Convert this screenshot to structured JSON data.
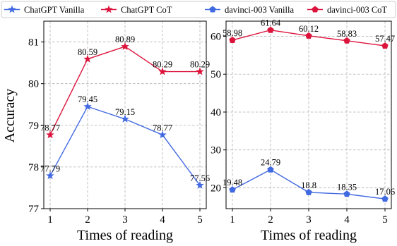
{
  "chart_data": [
    {
      "type": "line",
      "xlabel": "Times of reading",
      "ylabel": "Accuracy",
      "x": [
        1,
        2,
        3,
        4,
        5
      ],
      "ylim": [
        77,
        81.5
      ],
      "yticks": [
        77,
        78,
        79,
        80,
        81
      ],
      "grid": true,
      "series": [
        {
          "name": "ChatGPT Vanilla",
          "values": [
            77.79,
            79.45,
            79.15,
            78.77,
            77.56
          ],
          "labels": [
            "77.79",
            "79.45",
            "79.15",
            "78.77",
            "77.56"
          ],
          "color": "#4169e1",
          "marker": "star"
        },
        {
          "name": "ChatGPT CoT",
          "values": [
            78.77,
            80.59,
            80.89,
            80.29,
            80.29
          ],
          "labels": [
            "78.77",
            "80.59",
            "80.89",
            "80.29",
            "80.29"
          ],
          "color": "#dc143c",
          "marker": "star"
        }
      ]
    },
    {
      "type": "line",
      "xlabel": "Times of reading",
      "ylabel": "",
      "x": [
        1,
        2,
        3,
        4,
        5
      ],
      "ylim": [
        14.5,
        64
      ],
      "yticks": [
        20,
        30,
        40,
        50,
        60
      ],
      "grid": true,
      "series": [
        {
          "name": "davinci-003 Vanilla",
          "values": [
            19.48,
            24.79,
            18.8,
            18.35,
            17.06
          ],
          "labels": [
            "19.48",
            "24.79",
            "18.8",
            "18.35",
            "17.06"
          ],
          "color": "#4169e1",
          "marker": "pentagon"
        },
        {
          "name": "davinci-003 CoT",
          "values": [
            58.98,
            61.64,
            60.12,
            58.83,
            57.47
          ],
          "labels": [
            "58.98",
            "61.64",
            "60.12",
            "58.83",
            "57.47"
          ],
          "color": "#dc143c",
          "marker": "pentagon"
        }
      ]
    }
  ],
  "legend": {
    "position": "top",
    "items": [
      {
        "name": "ChatGPT Vanilla",
        "color": "#4169e1",
        "marker": "star"
      },
      {
        "name": "ChatGPT CoT",
        "color": "#dc143c",
        "marker": "star"
      },
      {
        "name": "davinci-003 Vanilla",
        "color": "#4169e1",
        "marker": "pentagon"
      },
      {
        "name": "davinci-003 CoT",
        "color": "#dc143c",
        "marker": "pentagon"
      }
    ]
  }
}
